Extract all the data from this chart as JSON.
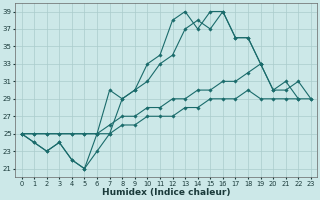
{
  "xlabel": "Humidex (Indice chaleur)",
  "background_color": "#cce8e8",
  "grid_color": "#aacccc",
  "line_color": "#1a6b6b",
  "xlim": [
    -0.5,
    23.5
  ],
  "ylim": [
    20,
    40
  ],
  "yticks": [
    21,
    23,
    25,
    27,
    29,
    31,
    33,
    35,
    37,
    39
  ],
  "xticks": [
    0,
    1,
    2,
    3,
    4,
    5,
    6,
    7,
    8,
    9,
    10,
    11,
    12,
    13,
    14,
    15,
    16,
    17,
    18,
    19,
    20,
    21,
    22,
    23
  ],
  "line1_x": [
    0,
    1,
    2,
    3,
    4,
    5,
    6,
    7,
    8,
    9,
    10,
    11,
    12,
    13,
    14,
    15,
    16,
    17,
    18,
    19,
    20,
    21,
    22,
    23
  ],
  "line1_y": [
    25,
    24,
    23,
    24,
    22,
    21,
    23,
    25,
    29,
    30,
    33,
    34,
    38,
    39,
    37,
    39,
    39,
    36,
    36,
    33,
    30,
    31,
    29,
    null
  ],
  "line2_x": [
    0,
    1,
    2,
    3,
    4,
    5,
    6,
    7,
    8,
    9,
    10,
    11,
    12,
    13,
    14,
    15,
    16,
    17,
    18,
    19,
    20,
    21,
    22,
    23
  ],
  "line2_y": [
    25,
    24,
    23,
    24,
    22,
    21,
    25,
    30,
    29,
    30,
    31,
    33,
    34,
    37,
    38,
    37,
    39,
    36,
    36,
    33,
    null,
    null,
    null,
    null
  ],
  "line3_x": [
    0,
    1,
    2,
    3,
    4,
    5,
    6,
    7,
    8,
    9,
    10,
    11,
    12,
    13,
    14,
    15,
    16,
    17,
    18,
    19,
    20,
    21,
    22,
    23
  ],
  "line3_y": [
    25,
    25,
    25,
    25,
    25,
    25,
    25,
    26,
    27,
    27,
    28,
    28,
    29,
    29,
    30,
    30,
    31,
    31,
    32,
    33,
    30,
    30,
    31,
    29
  ],
  "line4_x": [
    0,
    1,
    2,
    3,
    4,
    5,
    6,
    7,
    8,
    9,
    10,
    11,
    12,
    13,
    14,
    15,
    16,
    17,
    18,
    19,
    20,
    21,
    22,
    23
  ],
  "line4_y": [
    25,
    25,
    25,
    25,
    25,
    25,
    25,
    25,
    26,
    26,
    27,
    27,
    27,
    28,
    28,
    29,
    29,
    29,
    30,
    29,
    29,
    29,
    29,
    29
  ]
}
